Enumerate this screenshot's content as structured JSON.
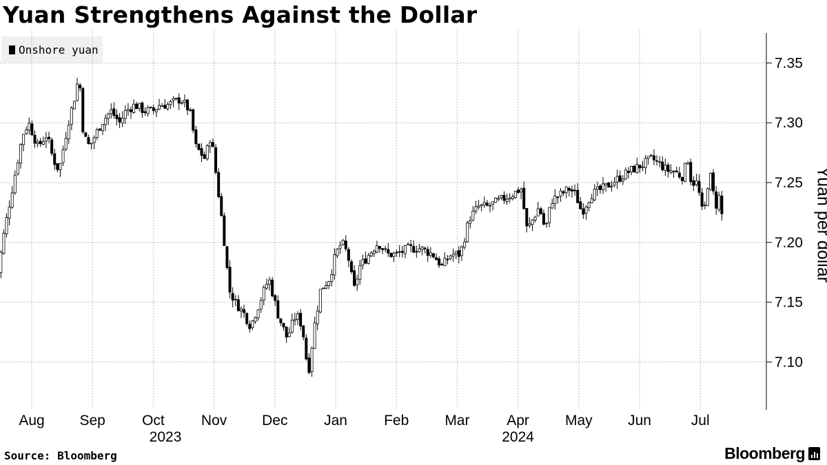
{
  "header": {
    "title": "Yuan Strengthens Against the Dollar"
  },
  "legend": {
    "label": "Onshore yuan"
  },
  "footer": {
    "source": "Source: Bloomberg",
    "brand": "Bloomberg"
  },
  "colors": {
    "candle": "#000000",
    "grid": "#bdbdbd",
    "legend_bg": "#f0f0f0"
  },
  "chart_data": {
    "type": "candlestick",
    "title": "Yuan Strengthens Against the Dollar",
    "ylabel": "Yuan per dollar",
    "xlabel": "",
    "ylim": [
      7.06,
      7.375
    ],
    "y_ticks": [
      7.1,
      7.15,
      7.2,
      7.25,
      7.3,
      7.35
    ],
    "y_tick_labels": [
      "7.10",
      "7.15",
      "7.20",
      "7.25",
      "7.30",
      "7.35"
    ],
    "grid": true,
    "legend": "top-left",
    "x_months": [
      {
        "label": "Aug",
        "t": 0.0
      },
      {
        "label": "Sep",
        "t": 1.0
      },
      {
        "label": "Oct",
        "t": 2.0
      },
      {
        "label": "Nov",
        "t": 3.0
      },
      {
        "label": "Dec",
        "t": 4.0
      },
      {
        "label": "Jan",
        "t": 5.0
      },
      {
        "label": "Feb",
        "t": 6.0
      },
      {
        "label": "Mar",
        "t": 7.0
      },
      {
        "label": "Apr",
        "t": 8.0
      },
      {
        "label": "May",
        "t": 9.0
      },
      {
        "label": "Jun",
        "t": 10.0
      },
      {
        "label": "Jul",
        "t": 11.0
      }
    ],
    "x_years": [
      {
        "label": "2023",
        "t": 2.2
      },
      {
        "label": "2024",
        "t": 8.0
      }
    ],
    "x_range": [
      -0.6,
      11.65
    ],
    "series": [
      {
        "name": "Onshore yuan",
        "anchors": [
          [
            -0.6,
            7.16
          ],
          [
            -0.45,
            7.21
          ],
          [
            -0.3,
            7.25
          ],
          [
            -0.15,
            7.29
          ],
          [
            -0.05,
            7.3
          ],
          [
            0.1,
            7.28
          ],
          [
            0.25,
            7.29
          ],
          [
            0.35,
            7.27
          ],
          [
            0.45,
            7.26
          ],
          [
            0.6,
            7.3
          ],
          [
            0.7,
            7.32
          ],
          [
            0.78,
            7.34
          ],
          [
            0.85,
            7.29
          ],
          [
            0.95,
            7.28
          ],
          [
            1.05,
            7.29
          ],
          [
            1.15,
            7.3
          ],
          [
            1.3,
            7.31
          ],
          [
            1.45,
            7.3
          ],
          [
            1.55,
            7.31
          ],
          [
            1.7,
            7.315
          ],
          [
            1.85,
            7.31
          ],
          [
            2.0,
            7.31
          ],
          [
            2.1,
            7.315
          ],
          [
            2.25,
            7.315
          ],
          [
            2.45,
            7.32
          ],
          [
            2.6,
            7.31
          ],
          [
            2.7,
            7.28
          ],
          [
            2.85,
            7.27
          ],
          [
            2.95,
            7.29
          ],
          [
            3.05,
            7.25
          ],
          [
            3.15,
            7.21
          ],
          [
            3.25,
            7.16
          ],
          [
            3.35,
            7.15
          ],
          [
            3.5,
            7.14
          ],
          [
            3.6,
            7.13
          ],
          [
            3.75,
            7.15
          ],
          [
            3.9,
            7.17
          ],
          [
            4.05,
            7.14
          ],
          [
            4.2,
            7.12
          ],
          [
            4.35,
            7.14
          ],
          [
            4.45,
            7.13
          ],
          [
            4.55,
            7.09
          ],
          [
            4.65,
            7.13
          ],
          [
            4.75,
            7.16
          ],
          [
            4.9,
            7.17
          ],
          [
            5.0,
            7.19
          ],
          [
            5.1,
            7.2
          ],
          [
            5.2,
            7.19
          ],
          [
            5.3,
            7.16
          ],
          [
            5.4,
            7.18
          ],
          [
            5.55,
            7.19
          ],
          [
            5.7,
            7.2
          ],
          [
            5.85,
            7.19
          ],
          [
            6.0,
            7.19
          ],
          [
            6.2,
            7.195
          ],
          [
            6.4,
            7.195
          ],
          [
            6.6,
            7.19
          ],
          [
            6.75,
            7.18
          ],
          [
            6.9,
            7.19
          ],
          [
            7.05,
            7.19
          ],
          [
            7.2,
            7.22
          ],
          [
            7.35,
            7.23
          ],
          [
            7.5,
            7.23
          ],
          [
            7.7,
            7.235
          ],
          [
            7.9,
            7.24
          ],
          [
            8.05,
            7.245
          ],
          [
            8.15,
            7.21
          ],
          [
            8.25,
            7.22
          ],
          [
            8.35,
            7.23
          ],
          [
            8.45,
            7.21
          ],
          [
            8.55,
            7.235
          ],
          [
            8.7,
            7.24
          ],
          [
            8.85,
            7.245
          ],
          [
            8.95,
            7.24
          ],
          [
            9.05,
            7.225
          ],
          [
            9.2,
            7.24
          ],
          [
            9.4,
            7.245
          ],
          [
            9.55,
            7.25
          ],
          [
            9.7,
            7.255
          ],
          [
            9.85,
            7.26
          ],
          [
            10.05,
            7.265
          ],
          [
            10.2,
            7.27
          ],
          [
            10.35,
            7.265
          ],
          [
            10.45,
            7.26
          ],
          [
            10.55,
            7.26
          ],
          [
            10.7,
            7.255
          ],
          [
            10.8,
            7.27
          ],
          [
            10.85,
            7.25
          ],
          [
            10.95,
            7.25
          ],
          [
            11.05,
            7.22
          ],
          [
            11.15,
            7.26
          ],
          [
            11.25,
            7.23
          ],
          [
            11.32,
            7.24
          ],
          [
            11.38,
            7.21
          ]
        ]
      }
    ]
  }
}
